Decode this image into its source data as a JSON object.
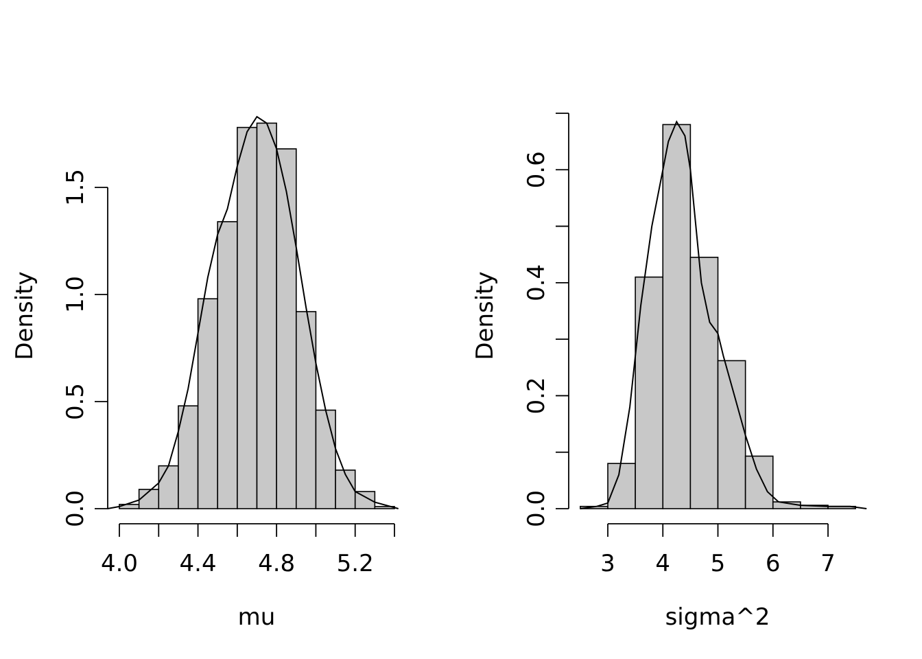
{
  "chart_data": [
    {
      "type": "bar",
      "subtype": "histogram-with-density",
      "xlabel": "mu",
      "ylabel": "Density",
      "xlim": [
        4.0,
        5.4
      ],
      "ylim": [
        0,
        1.83
      ],
      "x_ticks": [
        4.0,
        4.2,
        4.4,
        4.6,
        4.8,
        5.0,
        5.2,
        5.4
      ],
      "x_tick_labels": [
        {
          "value": 4.0,
          "label": "4.0"
        },
        {
          "value": 4.4,
          "label": "4.4"
        },
        {
          "value": 4.8,
          "label": "4.8"
        },
        {
          "value": 5.2,
          "label": "5.2"
        }
      ],
      "y_ticks": [
        0.0,
        0.5,
        1.0,
        1.5
      ],
      "y_tick_labels": [
        {
          "value": 0.0,
          "label": "0.0"
        },
        {
          "value": 0.5,
          "label": "0.5"
        },
        {
          "value": 1.0,
          "label": "1.0"
        },
        {
          "value": 1.5,
          "label": "1.5"
        }
      ],
      "bins": [
        {
          "from": 4.0,
          "to": 4.1,
          "density": 0.02
        },
        {
          "from": 4.1,
          "to": 4.2,
          "density": 0.09
        },
        {
          "from": 4.2,
          "to": 4.3,
          "density": 0.2
        },
        {
          "from": 4.3,
          "to": 4.4,
          "density": 0.48
        },
        {
          "from": 4.4,
          "to": 4.5,
          "density": 0.98
        },
        {
          "from": 4.5,
          "to": 4.6,
          "density": 1.34
        },
        {
          "from": 4.6,
          "to": 4.7,
          "density": 1.78
        },
        {
          "from": 4.7,
          "to": 4.8,
          "density": 1.8
        },
        {
          "from": 4.8,
          "to": 4.9,
          "density": 1.68
        },
        {
          "from": 4.9,
          "to": 5.0,
          "density": 0.92
        },
        {
          "from": 5.0,
          "to": 5.1,
          "density": 0.46
        },
        {
          "from": 5.1,
          "to": 5.2,
          "density": 0.18
        },
        {
          "from": 5.2,
          "to": 5.3,
          "density": 0.08
        },
        {
          "from": 5.3,
          "to": 5.4,
          "density": 0.01
        }
      ],
      "density_curve": [
        [
          3.94,
          0.0
        ],
        [
          4.0,
          0.01
        ],
        [
          4.1,
          0.04
        ],
        [
          4.2,
          0.12
        ],
        [
          4.25,
          0.2
        ],
        [
          4.3,
          0.36
        ],
        [
          4.35,
          0.56
        ],
        [
          4.4,
          0.82
        ],
        [
          4.45,
          1.08
        ],
        [
          4.5,
          1.28
        ],
        [
          4.55,
          1.4
        ],
        [
          4.6,
          1.6
        ],
        [
          4.65,
          1.76
        ],
        [
          4.7,
          1.83
        ],
        [
          4.75,
          1.8
        ],
        [
          4.8,
          1.68
        ],
        [
          4.85,
          1.48
        ],
        [
          4.9,
          1.22
        ],
        [
          4.95,
          0.94
        ],
        [
          5.0,
          0.68
        ],
        [
          5.05,
          0.46
        ],
        [
          5.1,
          0.28
        ],
        [
          5.15,
          0.16
        ],
        [
          5.2,
          0.08
        ],
        [
          5.3,
          0.03
        ],
        [
          5.42,
          0.0
        ]
      ],
      "bar_color": "#c8c8c8",
      "line_color": "#000000"
    },
    {
      "type": "bar",
      "subtype": "histogram-with-density",
      "xlabel": "sigma^2",
      "ylabel": "Density",
      "xlim": [
        3,
        7
      ],
      "ylim": [
        0,
        0.7
      ],
      "x_ticks": [
        3,
        4,
        5,
        6,
        7
      ],
      "x_tick_labels": [
        {
          "value": 3,
          "label": "3"
        },
        {
          "value": 4,
          "label": "4"
        },
        {
          "value": 5,
          "label": "5"
        },
        {
          "value": 6,
          "label": "6"
        },
        {
          "value": 7,
          "label": "7"
        }
      ],
      "y_ticks": [
        0.0,
        0.1,
        0.2,
        0.3,
        0.4,
        0.5,
        0.6,
        0.7
      ],
      "y_tick_labels": [
        {
          "value": 0.0,
          "label": "0.0"
        },
        {
          "value": 0.2,
          "label": "0.2"
        },
        {
          "value": 0.4,
          "label": "0.4"
        },
        {
          "value": 0.6,
          "label": "0.6"
        }
      ],
      "bins": [
        {
          "from": 2.5,
          "to": 3.0,
          "density": 0.004
        },
        {
          "from": 3.0,
          "to": 3.5,
          "density": 0.08
        },
        {
          "from": 3.5,
          "to": 4.0,
          "density": 0.41
        },
        {
          "from": 4.0,
          "to": 4.5,
          "density": 0.68
        },
        {
          "from": 4.5,
          "to": 5.0,
          "density": 0.445
        },
        {
          "from": 5.0,
          "to": 5.5,
          "density": 0.262
        },
        {
          "from": 5.5,
          "to": 6.0,
          "density": 0.093
        },
        {
          "from": 6.0,
          "to": 6.5,
          "density": 0.012
        },
        {
          "from": 6.5,
          "to": 7.0,
          "density": 0.006
        },
        {
          "from": 7.0,
          "to": 7.5,
          "density": 0.004
        }
      ],
      "density_curve": [
        [
          2.5,
          0.0
        ],
        [
          2.8,
          0.004
        ],
        [
          3.0,
          0.01
        ],
        [
          3.2,
          0.06
        ],
        [
          3.4,
          0.18
        ],
        [
          3.6,
          0.36
        ],
        [
          3.8,
          0.5
        ],
        [
          4.0,
          0.6
        ],
        [
          4.1,
          0.65
        ],
        [
          4.25,
          0.685
        ],
        [
          4.4,
          0.66
        ],
        [
          4.5,
          0.6
        ],
        [
          4.6,
          0.5
        ],
        [
          4.7,
          0.4
        ],
        [
          4.85,
          0.33
        ],
        [
          5.0,
          0.31
        ],
        [
          5.1,
          0.27
        ],
        [
          5.3,
          0.2
        ],
        [
          5.5,
          0.13
        ],
        [
          5.7,
          0.07
        ],
        [
          5.9,
          0.03
        ],
        [
          6.1,
          0.012
        ],
        [
          6.5,
          0.006
        ],
        [
          7.0,
          0.004
        ],
        [
          7.4,
          0.004
        ],
        [
          7.7,
          0.0
        ]
      ],
      "bar_color": "#c8c8c8",
      "line_color": "#000000"
    }
  ]
}
